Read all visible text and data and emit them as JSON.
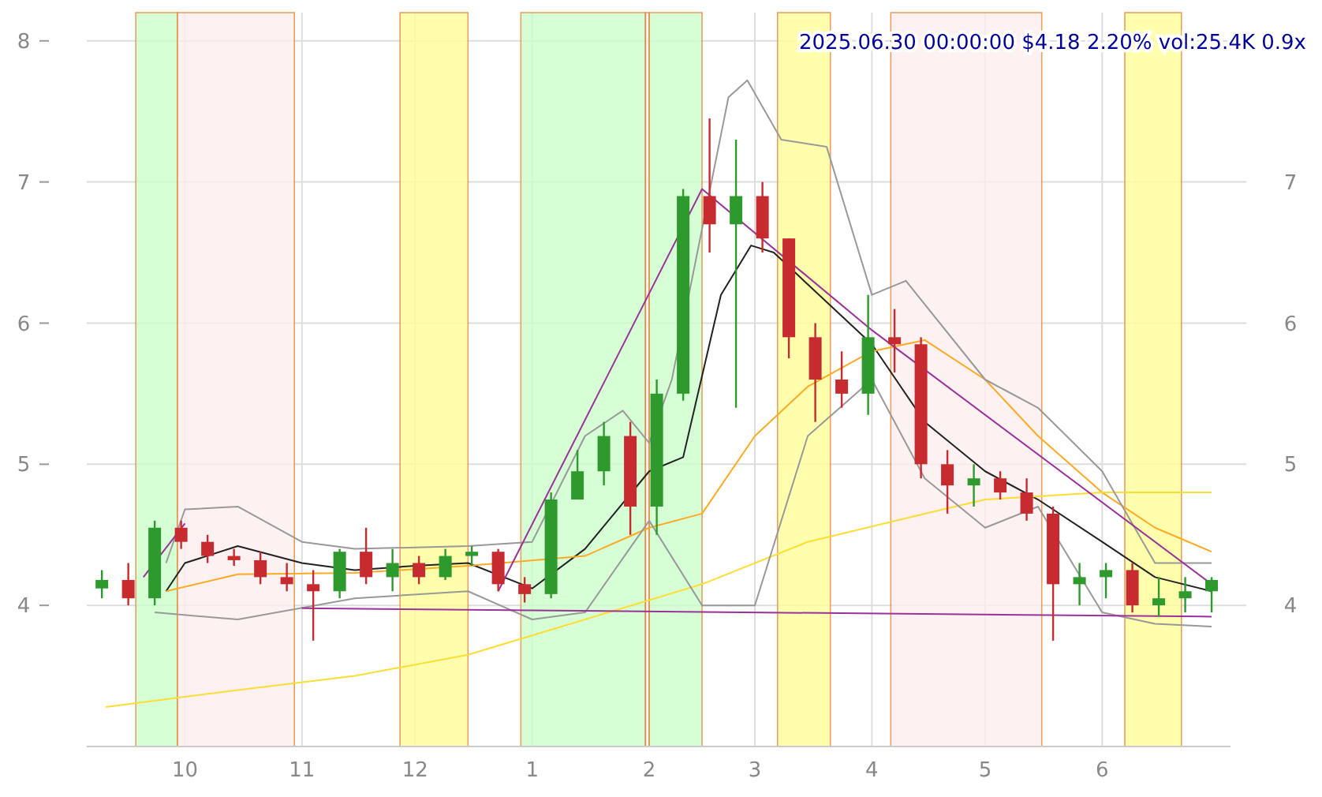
{
  "chart_data": {
    "type": "candlestick",
    "title": "2025.06.30 00:00:00 $4.18 2.20% vol:25.4K 0.9x",
    "x": [
      "2024-09-09",
      "2024-09-16",
      "2024-09-23",
      "2024-09-30",
      "2024-10-07",
      "2024-10-14",
      "2024-10-21",
      "2024-10-28",
      "2024-11-04",
      "2024-11-11",
      "2024-11-18",
      "2024-11-25",
      "2024-12-02",
      "2024-12-09",
      "2024-12-16",
      "2024-12-23",
      "2024-12-30",
      "2025-01-06",
      "2025-01-13",
      "2025-01-20",
      "2025-01-27",
      "2025-02-03",
      "2025-02-10",
      "2025-02-17",
      "2025-02-24",
      "2025-03-03",
      "2025-03-10",
      "2025-03-17",
      "2025-03-24",
      "2025-03-31",
      "2025-04-07",
      "2025-04-14",
      "2025-04-21",
      "2025-04-28",
      "2025-05-05",
      "2025-05-12",
      "2025-05-19",
      "2025-05-26",
      "2025-06-02",
      "2025-06-09",
      "2025-06-16",
      "2025-06-23",
      "2025-06-30"
    ],
    "ohlc": [
      [
        4.12,
        4.25,
        4.05,
        4.18
      ],
      [
        4.18,
        4.3,
        4.0,
        4.05
      ],
      [
        4.05,
        4.6,
        4.0,
        4.55
      ],
      [
        4.55,
        4.6,
        4.4,
        4.45
      ],
      [
        4.45,
        4.5,
        4.3,
        4.35
      ],
      [
        4.35,
        4.4,
        4.28,
        4.32
      ],
      [
        4.32,
        4.38,
        4.15,
        4.2
      ],
      [
        4.2,
        4.3,
        4.1,
        4.15
      ],
      [
        4.15,
        4.25,
        3.75,
        4.1
      ],
      [
        4.1,
        4.4,
        4.05,
        4.38
      ],
      [
        4.38,
        4.55,
        4.15,
        4.2
      ],
      [
        4.2,
        4.4,
        4.1,
        4.3
      ],
      [
        4.3,
        4.35,
        4.15,
        4.2
      ],
      [
        4.2,
        4.4,
        4.18,
        4.35
      ],
      [
        4.35,
        4.42,
        4.28,
        4.38
      ],
      [
        4.38,
        4.4,
        4.1,
        4.15
      ],
      [
        4.15,
        4.2,
        4.02,
        4.08
      ],
      [
        4.08,
        4.8,
        4.05,
        4.75
      ],
      [
        4.75,
        5.1,
        4.75,
        4.95
      ],
      [
        4.95,
        5.3,
        4.85,
        5.2
      ],
      [
        5.2,
        5.3,
        4.5,
        4.7
      ],
      [
        4.7,
        5.6,
        4.5,
        5.5
      ],
      [
        5.5,
        6.95,
        5.45,
        6.9
      ],
      [
        6.9,
        7.45,
        6.5,
        6.7
      ],
      [
        6.7,
        7.3,
        5.4,
        6.9
      ],
      [
        6.9,
        7.0,
        6.5,
        6.6
      ],
      [
        6.6,
        6.6,
        5.75,
        5.9
      ],
      [
        5.9,
        6.0,
        5.3,
        5.6
      ],
      [
        5.6,
        5.8,
        5.4,
        5.5
      ],
      [
        5.5,
        6.2,
        5.35,
        5.9
      ],
      [
        5.9,
        6.1,
        5.65,
        5.85
      ],
      [
        5.85,
        5.9,
        4.9,
        5.0
      ],
      [
        5.0,
        5.1,
        4.65,
        4.85
      ],
      [
        4.85,
        5.0,
        4.7,
        4.9
      ],
      [
        4.9,
        4.95,
        4.75,
        4.8
      ],
      [
        4.8,
        4.9,
        4.6,
        4.65
      ],
      [
        4.65,
        4.7,
        3.75,
        4.15
      ],
      [
        4.15,
        4.3,
        4.0,
        4.2
      ],
      [
        4.2,
        4.3,
        4.05,
        4.25
      ],
      [
        4.25,
        4.3,
        3.95,
        4.0
      ],
      [
        4.0,
        4.2,
        3.92,
        4.05
      ],
      [
        4.05,
        4.2,
        3.95,
        4.1
      ],
      [
        4.1,
        4.2,
        3.95,
        4.18
      ]
    ],
    "series": [
      {
        "type": "line",
        "color": "#222222",
        "x": [
          "2024-09-26",
          "2024-10-01",
          "2024-10-15",
          "2024-11-01",
          "2024-11-15",
          "2024-12-01",
          "2024-12-15",
          "2025-01-01",
          "2025-01-15",
          "2025-02-01",
          "2025-02-10",
          "2025-02-20",
          "2025-02-28",
          "2025-03-06",
          "2025-04-01",
          "2025-04-15",
          "2025-05-01",
          "2025-05-15",
          "2025-06-01",
          "2025-06-15",
          "2025-06-30"
        ],
        "values": [
          4.1,
          4.3,
          4.42,
          4.3,
          4.25,
          4.28,
          4.3,
          4.12,
          4.4,
          4.95,
          5.05,
          6.2,
          6.55,
          6.5,
          5.85,
          5.3,
          4.95,
          4.75,
          4.45,
          4.2,
          4.1
        ]
      },
      {
        "type": "line",
        "color": "#ffaa22",
        "x": [
          "2024-09-26",
          "2024-10-15",
          "2024-11-15",
          "2024-12-15",
          "2025-01-15",
          "2025-02-01",
          "2025-02-15",
          "2025-03-01",
          "2025-03-15",
          "2025-04-01",
          "2025-04-15",
          "2025-05-01",
          "2025-05-15",
          "2025-06-01",
          "2025-06-15",
          "2025-06-30"
        ],
        "values": [
          4.1,
          4.22,
          4.23,
          4.28,
          4.35,
          4.55,
          4.65,
          5.2,
          5.55,
          5.8,
          5.88,
          5.6,
          5.2,
          4.8,
          4.55,
          4.38
        ]
      },
      {
        "type": "line",
        "color": "#ffdd33",
        "x": [
          "2024-09-10",
          "2024-10-15",
          "2024-11-15",
          "2024-12-15",
          "2025-01-15",
          "2025-02-15",
          "2025-03-15",
          "2025-04-15",
          "2025-05-01",
          "2025-06-01",
          "2025-06-30"
        ],
        "values": [
          3.28,
          3.4,
          3.5,
          3.65,
          3.9,
          4.15,
          4.45,
          4.65,
          4.75,
          4.8,
          4.8
        ]
      },
      {
        "type": "line",
        "color": "#999999",
        "x": [
          "2024-09-26",
          "2024-10-01",
          "2024-10-15",
          "2024-11-01",
          "2024-11-15",
          "2024-12-15",
          "2025-01-01",
          "2025-01-15",
          "2025-01-25",
          "2025-02-01",
          "2025-02-07",
          "2025-02-22",
          "2025-02-27",
          "2025-03-08",
          "2025-03-20",
          "2025-04-01",
          "2025-04-10",
          "2025-05-01",
          "2025-05-15",
          "2025-06-01",
          "2025-06-15",
          "2025-06-30"
        ],
        "values": [
          4.3,
          4.68,
          4.7,
          4.45,
          4.4,
          4.42,
          4.45,
          5.2,
          5.38,
          5.15,
          5.6,
          7.6,
          7.72,
          7.3,
          7.25,
          6.2,
          6.3,
          5.6,
          5.4,
          4.95,
          4.3,
          4.3
        ]
      },
      {
        "type": "line",
        "color": "#999999",
        "x": [
          "2024-09-23",
          "2024-10-15",
          "2024-11-15",
          "2024-12-15",
          "2025-01-01",
          "2025-01-15",
          "2025-02-01",
          "2025-02-15",
          "2025-03-01",
          "2025-03-15",
          "2025-04-01",
          "2025-04-15",
          "2025-05-01",
          "2025-05-15",
          "2025-06-01",
          "2025-06-15",
          "2025-06-30"
        ],
        "values": [
          3.95,
          3.9,
          4.05,
          4.1,
          3.9,
          3.95,
          4.6,
          4.0,
          4.0,
          5.2,
          5.6,
          4.9,
          4.55,
          4.7,
          3.95,
          3.87,
          3.85
        ]
      },
      {
        "type": "line",
        "color": "#993399",
        "x": [
          "2024-09-20",
          "2024-10-01"
        ],
        "values": [
          4.2,
          4.58
        ]
      },
      {
        "type": "line",
        "color": "#993399",
        "x": [
          "2024-12-23",
          "2025-02-15",
          "2025-04-01",
          "2025-06-30"
        ],
        "values": [
          4.1,
          6.95,
          5.95,
          4.15
        ]
      },
      {
        "type": "line",
        "color": "#993399",
        "x": [
          "2024-11-01",
          "2025-06-30"
        ],
        "values": [
          3.98,
          3.92
        ]
      }
    ],
    "bands": [
      {
        "axis": "x",
        "from": "2024-09-18",
        "to": "2024-09-29",
        "color": "#ccffcc"
      },
      {
        "axis": "x",
        "from": "2024-09-29",
        "to": "2024-10-30",
        "color": "#fdeeee"
      },
      {
        "axis": "x",
        "from": "2024-11-27",
        "to": "2024-12-15",
        "color": "#ffff99"
      },
      {
        "axis": "x",
        "from": "2024-12-29",
        "to": "2025-01-31",
        "color": "#ccffcc"
      },
      {
        "axis": "x",
        "from": "2025-01-31",
        "to": "2025-02-01",
        "color": "#fdeeee"
      },
      {
        "axis": "x",
        "from": "2025-02-01",
        "to": "2025-02-15",
        "color": "#ccffcc"
      },
      {
        "axis": "x",
        "from": "2025-03-07",
        "to": "2025-03-21",
        "color": "#ffff99"
      },
      {
        "axis": "x",
        "from": "2025-04-06",
        "to": "2025-05-16",
        "color": "#fdeeee"
      },
      {
        "axis": "x",
        "from": "2025-06-07",
        "to": "2025-06-22",
        "color": "#ffff99"
      }
    ],
    "xlim": [
      "2024-09-05",
      "2025-07-05"
    ],
    "xticks": [
      {
        "value": "2024-10-01",
        "label": "10"
      },
      {
        "value": "2024-11-01",
        "label": "11"
      },
      {
        "value": "2024-12-01",
        "label": "12"
      },
      {
        "value": "2025-01-01",
        "label": "1"
      },
      {
        "value": "2025-02-01",
        "label": "2"
      },
      {
        "value": "2025-03-01",
        "label": "3"
      },
      {
        "value": "2025-04-01",
        "label": "4"
      },
      {
        "value": "2025-05-01",
        "label": "5"
      },
      {
        "value": "2025-06-01",
        "label": "6"
      }
    ],
    "ylim": [
      3.0,
      8.2
    ],
    "yticks": [
      4,
      5,
      6,
      7,
      8
    ],
    "y2lim": [
      3.0,
      8.2
    ],
    "y2ticks": [
      4,
      5,
      6,
      7
    ],
    "grid": true
  }
}
